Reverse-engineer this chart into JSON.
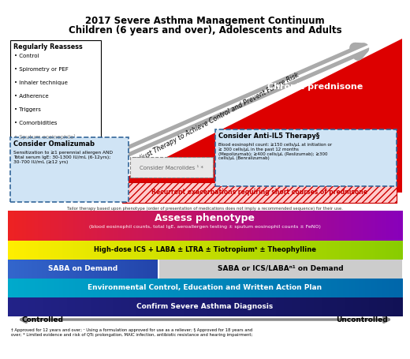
{
  "title_line1": "2017 Severe Asthma Management Continuum",
  "title_line2": "Children (6 years and over), Adolescents and Adults",
  "bg_color": "#ffffff",
  "red_color": "#cc0000",
  "diagonal_text": "Adjust Therapy to Achieve Control and Prevent Future Risk",
  "reassess_title": "Regularly Reassess",
  "reassess_items": [
    "Control",
    "Spirometry or PEF",
    "Inhaler technique",
    "Adherence",
    "Triggers",
    "Comorbidities",
    "Sputum eosinophils¹"
  ],
  "chronic_prednisone": "Chronic prednisone",
  "recurrent_text": "Recurrent exacerbations requiring short courses of prednisone",
  "omalizumab_title": "Consider Omalizumab",
  "omalizumab_body": "Sensitization to ≥1 perennial allergen AND\nTotal serum IgE: 30-1300 IU/mL (6-12yrs);\n30-700 IU/mL (≥12 yrs)",
  "macrolides_text": "Consider Macrolides ¹ *",
  "anti_il5_title": "Consider Anti-IL5 Therapy§",
  "anti_il5_body": "Blood eosinophil count: ≥150 cells/μL at initiation or\n≥ 300 cells/μL in the past 12 months\n(Mepolizumab); ≥400 cells/μL (Reslizumab); ≥300\ncells/μL (Benralizumab)",
  "phenotype_text": "Assess phenotype",
  "phenotype_sub": "(blood eosinophil counts, total IgE, aeroallergen testing ± sputum eosinophil counts ± FeNO)",
  "highics_text": "High-dose ICS + LABA ± LTRA ± Tiotropium⁵ ± Theophylline",
  "saba_left": "SABA on Demand",
  "saba_right": "SABA or ICS/LABAⁿ¹ on Demand",
  "env_text": "Environmental Control, Education and Written Action Plan",
  "confirm_text": "Confirm Severe Asthma Diagnosis",
  "controlled_text": "Controlled",
  "uncontrolled_text": "Uncontrolled",
  "footnote": "† Approved for 12 years and over; ¹ Using a formulation approved for use as a reliever; § Approved for 18 years and\nover; * Limited evidence and risk of QTc prolongation, MAIC infection, antibiotic resistance and hearing impairment;",
  "tailor_note": "Tailor therapy based upon phenotype (order of presentation of medications does not imply a recommended sequence) for their use.",
  "saba_left_bg": "#3355aa",
  "env_bg": "#2266bb",
  "confirm_bg": "#111166",
  "arrow_gray": "#aaaaaa"
}
